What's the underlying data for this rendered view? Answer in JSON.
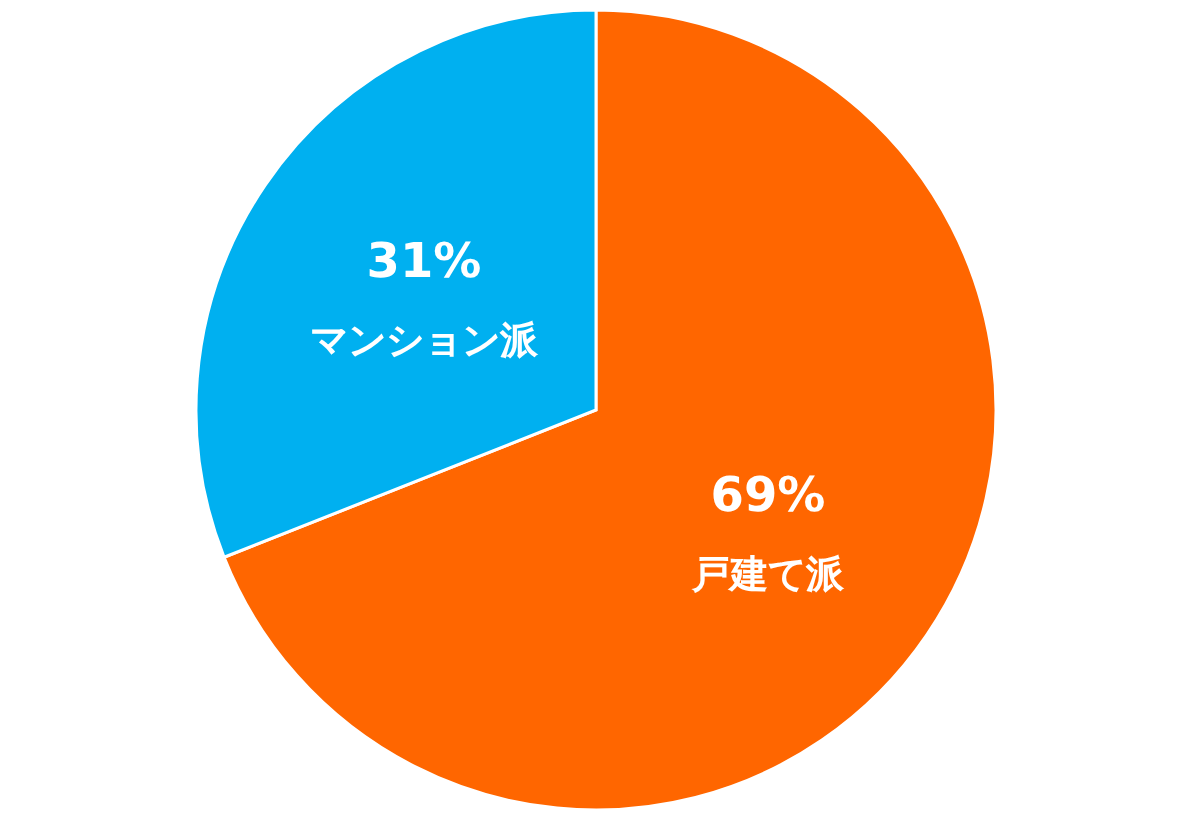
{
  "chart_data": {
    "type": "pie",
    "categories": [
      "戸建て派",
      "マンション派"
    ],
    "values": [
      69,
      31
    ],
    "colors": [
      "#ff6600",
      "#00b0f0"
    ],
    "value_labels": [
      "69%",
      "31%"
    ],
    "legend": false
  }
}
